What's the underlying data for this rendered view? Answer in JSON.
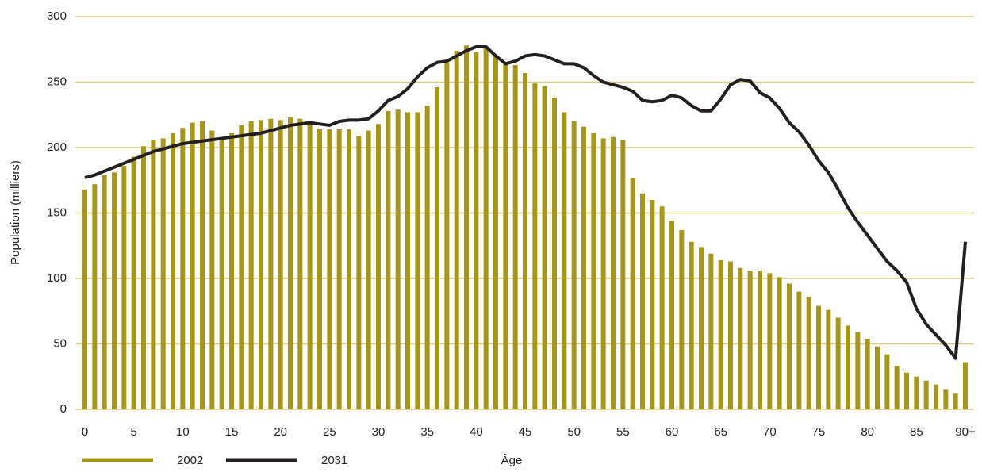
{
  "chart_data": {
    "type": "bar_line",
    "x_label": "Âge",
    "y_label": "Population (milliers)",
    "categories": [
      "0",
      null,
      null,
      null,
      null,
      "5",
      null,
      null,
      null,
      null,
      "10",
      null,
      null,
      null,
      null,
      "15",
      null,
      null,
      null,
      null,
      "20",
      null,
      null,
      null,
      null,
      "25",
      null,
      null,
      null,
      null,
      "30",
      null,
      null,
      null,
      null,
      "35",
      null,
      null,
      null,
      null,
      "40",
      null,
      null,
      null,
      null,
      "45",
      null,
      null,
      null,
      null,
      "50",
      null,
      null,
      null,
      null,
      "55",
      null,
      null,
      null,
      null,
      "60",
      null,
      null,
      null,
      null,
      "65",
      null,
      null,
      null,
      null,
      "70",
      null,
      null,
      null,
      null,
      "75",
      null,
      null,
      null,
      null,
      "80",
      null,
      null,
      null,
      null,
      "85",
      null,
      null,
      null,
      null,
      "90+"
    ],
    "series": [
      {
        "name": "2002",
        "type": "bar",
        "color": "#a6971a",
        "values": [
          168,
          172,
          179,
          181,
          186,
          193,
          201,
          206,
          207,
          211,
          215,
          219,
          220,
          213,
          206,
          211,
          217,
          220,
          221,
          222,
          221,
          223,
          222,
          219,
          214,
          214,
          214,
          214,
          209,
          213,
          218,
          228,
          229,
          227,
          227,
          232,
          246,
          265,
          274,
          278,
          273,
          277,
          270,
          264,
          263,
          257,
          249,
          247,
          238,
          227,
          220,
          216,
          211,
          207,
          208,
          206,
          177,
          165,
          160,
          155,
          144,
          137,
          128,
          124,
          119,
          114,
          113,
          108,
          106,
          106,
          104,
          101,
          96,
          90,
          86,
          79,
          76,
          70,
          64,
          59,
          54,
          48,
          42,
          33,
          28,
          25,
          22,
          19,
          15,
          12,
          36
        ]
      },
      {
        "name": "2031",
        "type": "line",
        "color": "#231f20",
        "values": [
          177,
          179,
          182,
          185,
          188,
          191,
          194,
          197,
          199,
          201,
          203,
          204,
          205,
          206,
          207,
          208,
          209,
          210,
          211,
          213,
          215,
          217,
          218,
          219,
          218,
          217,
          220,
          221,
          221,
          222,
          228,
          236,
          239,
          245,
          254,
          261,
          265,
          266,
          270,
          274,
          277,
          277,
          270,
          264,
          266,
          270,
          271,
          270,
          267,
          264,
          264,
          261,
          255,
          250,
          248,
          246,
          243,
          236,
          235,
          236,
          240,
          238,
          232,
          228,
          228,
          237,
          248,
          252,
          251,
          242,
          238,
          230,
          219,
          212,
          202,
          190,
          181,
          168,
          154,
          143,
          133,
          123,
          113,
          106,
          97,
          77,
          65,
          57,
          49,
          39,
          128
        ]
      }
    ],
    "ylim": [
      0,
      300
    ],
    "yticks": [
      0,
      50,
      100,
      150,
      200,
      250,
      300
    ],
    "grid": true,
    "grid_color": "#dccb7e",
    "legend": "bottom-left"
  }
}
